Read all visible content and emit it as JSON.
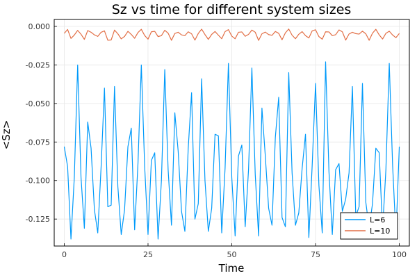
{
  "chart_data": {
    "type": "line",
    "title": "Sz vs time for different system sizes",
    "xlabel": "Time",
    "ylabel": "<Sz>",
    "xlim": [
      -3,
      103
    ],
    "ylim": [
      -0.1425,
      0.0045
    ],
    "xticks": [
      0,
      25,
      50,
      75,
      100
    ],
    "xtick_labels": [
      "0",
      "25",
      "50",
      "75",
      "100"
    ],
    "yticks": [
      0.0,
      -0.025,
      -0.05,
      -0.075,
      -0.1,
      -0.125
    ],
    "ytick_labels": [
      "0.000",
      "-0.025",
      "-0.050",
      "-0.075",
      "-0.100",
      "-0.125"
    ],
    "grid": true,
    "legend_position": "bottom-right",
    "series": [
      {
        "name": "L=6",
        "color": "#009AFA",
        "x": [
          0,
          1,
          2,
          3,
          4,
          5,
          6,
          7,
          8,
          9,
          10,
          11,
          12,
          13,
          14,
          15,
          16,
          17,
          18,
          19,
          20,
          21,
          22,
          23,
          24,
          25,
          26,
          27,
          28,
          29,
          30,
          31,
          32,
          33,
          34,
          35,
          36,
          37,
          38,
          39,
          40,
          41,
          42,
          43,
          44,
          45,
          46,
          47,
          48,
          49,
          50,
          51,
          52,
          53,
          54,
          55,
          56,
          57,
          58,
          59,
          60,
          61,
          62,
          63,
          64,
          65,
          66,
          67,
          68,
          69,
          70,
          71,
          72,
          73,
          74,
          75,
          76,
          77,
          78,
          79,
          80,
          81,
          82,
          83,
          84,
          85,
          86,
          87,
          88,
          89,
          90,
          91,
          92,
          93,
          94,
          95,
          96,
          97,
          98,
          99,
          100
        ],
        "values": [
          -0.078,
          -0.091,
          -0.138,
          -0.098,
          -0.025,
          -0.098,
          -0.131,
          -0.062,
          -0.079,
          -0.119,
          -0.134,
          -0.091,
          -0.04,
          -0.117,
          -0.116,
          -0.039,
          -0.104,
          -0.135,
          -0.119,
          -0.078,
          -0.066,
          -0.132,
          -0.089,
          -0.025,
          -0.091,
          -0.135,
          -0.087,
          -0.082,
          -0.138,
          -0.1,
          -0.028,
          -0.093,
          -0.129,
          -0.056,
          -0.081,
          -0.12,
          -0.133,
          -0.079,
          -0.043,
          -0.125,
          -0.115,
          -0.034,
          -0.1,
          -0.133,
          -0.118,
          -0.07,
          -0.071,
          -0.134,
          -0.092,
          -0.024,
          -0.098,
          -0.136,
          -0.084,
          -0.077,
          -0.13,
          -0.093,
          -0.027,
          -0.096,
          -0.136,
          -0.053,
          -0.084,
          -0.118,
          -0.129,
          -0.072,
          -0.046,
          -0.124,
          -0.13,
          -0.03,
          -0.095,
          -0.129,
          -0.121,
          -0.092,
          -0.07,
          -0.137,
          -0.09,
          -0.037,
          -0.103,
          -0.134,
          -0.023,
          -0.094,
          -0.135,
          -0.093,
          -0.089,
          -0.12,
          -0.112,
          -0.095,
          -0.039,
          -0.123,
          -0.117,
          -0.037,
          -0.114,
          -0.131,
          -0.115,
          -0.079,
          -0.082,
          -0.132,
          -0.093,
          -0.024,
          -0.09,
          -0.136,
          -0.078
        ]
      },
      {
        "name": "L=10",
        "color": "#E26F46",
        "x": [
          0,
          1,
          2,
          3,
          4,
          5,
          6,
          7,
          8,
          9,
          10,
          11,
          12,
          13,
          14,
          15,
          16,
          17,
          18,
          19,
          20,
          21,
          22,
          23,
          24,
          25,
          26,
          27,
          28,
          29,
          30,
          31,
          32,
          33,
          34,
          35,
          36,
          37,
          38,
          39,
          40,
          41,
          42,
          43,
          44,
          45,
          46,
          47,
          48,
          49,
          50,
          51,
          52,
          53,
          54,
          55,
          56,
          57,
          58,
          59,
          60,
          61,
          62,
          63,
          64,
          65,
          66,
          67,
          68,
          69,
          70,
          71,
          72,
          73,
          74,
          75,
          76,
          77,
          78,
          79,
          80,
          81,
          82,
          83,
          84,
          85,
          86,
          87,
          88,
          89,
          90,
          91,
          92,
          93,
          94,
          95,
          96,
          97,
          98,
          99,
          100
        ],
        "values": [
          -0.0045,
          -0.002,
          -0.0078,
          -0.0056,
          -0.0026,
          -0.0051,
          -0.0084,
          -0.0027,
          -0.0038,
          -0.0055,
          -0.0065,
          -0.0038,
          -0.0029,
          -0.009,
          -0.0088,
          -0.0024,
          -0.0048,
          -0.0081,
          -0.0065,
          -0.0032,
          -0.0052,
          -0.0077,
          -0.004,
          -0.0019,
          -0.0059,
          -0.0083,
          -0.0035,
          -0.0032,
          -0.0066,
          -0.006,
          -0.0025,
          -0.0044,
          -0.009,
          -0.0046,
          -0.0038,
          -0.0055,
          -0.006,
          -0.0035,
          -0.0048,
          -0.0089,
          -0.0046,
          -0.0018,
          -0.0053,
          -0.0084,
          -0.0052,
          -0.0033,
          -0.0057,
          -0.008,
          -0.0034,
          -0.0021,
          -0.0063,
          -0.008,
          -0.0038,
          -0.0036,
          -0.0064,
          -0.0052,
          -0.0024,
          -0.0038,
          -0.0091,
          -0.0048,
          -0.0037,
          -0.0053,
          -0.0058,
          -0.0033,
          -0.0045,
          -0.0087,
          -0.0042,
          -0.0017,
          -0.0057,
          -0.008,
          -0.0051,
          -0.0034,
          -0.006,
          -0.0075,
          -0.0029,
          -0.0022,
          -0.0066,
          -0.0083,
          -0.0035,
          -0.0036,
          -0.006,
          -0.0054,
          -0.0023,
          -0.0035,
          -0.0089,
          -0.0049,
          -0.0038,
          -0.0047,
          -0.005,
          -0.0031,
          -0.0048,
          -0.009,
          -0.0044,
          -0.0019,
          -0.0055,
          -0.0082,
          -0.0045,
          -0.0031,
          -0.0056,
          -0.0073,
          -0.0046
        ]
      }
    ]
  }
}
